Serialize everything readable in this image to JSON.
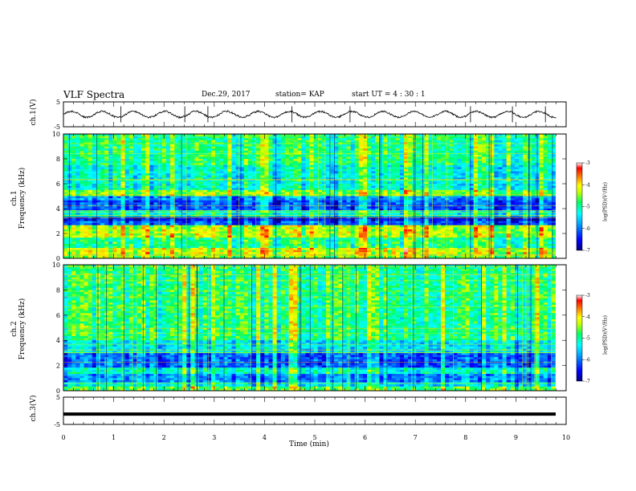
{
  "header": {
    "title": "VLF Spectra",
    "date": "Dec.29, 2017",
    "station": "station= KAP",
    "start": "start  UT =   4 : 30 : 1"
  },
  "chart_data": [
    {
      "type": "line",
      "name": "ch1-waveform",
      "ylabel": "ch.1(V)",
      "ylim": [
        -5,
        5
      ],
      "yticks": [
        "5",
        "-5"
      ],
      "xlim": [
        0,
        10
      ],
      "description_values": {
        "amplitude_V": 1.2,
        "oscillation_period_min": 0.62,
        "noise_V": 0.35
      }
    },
    {
      "type": "heatmap",
      "name": "ch1-spectrogram",
      "ylabel": "ch.1\nFrequency  (kHz)",
      "ylim": [
        0,
        10
      ],
      "yticks": [
        "0",
        "2",
        "4",
        "6",
        "8",
        "10"
      ],
      "xlim": [
        0,
        10
      ],
      "colorbar": {
        "label": "log(PSD)(V²/Hz)",
        "range": [
          -7,
          -3
        ],
        "ticks": [
          "-3",
          "-4",
          "-5",
          "-6",
          "-7"
        ]
      },
      "bands_kHz_log_psd": [
        [
          0.0,
          0.3,
          -4.6
        ],
        [
          0.3,
          0.8,
          -4.3
        ],
        [
          0.8,
          1.7,
          -5.0
        ],
        [
          1.7,
          2.6,
          -4.4
        ],
        [
          2.6,
          3.0,
          -6.2
        ],
        [
          3.0,
          3.4,
          -6.6
        ],
        [
          3.4,
          3.9,
          -5.3
        ],
        [
          3.9,
          4.6,
          -6.2
        ],
        [
          4.6,
          5.0,
          -5.9
        ],
        [
          5.0,
          5.5,
          -4.6
        ],
        [
          5.5,
          7.5,
          -5.3
        ],
        [
          7.5,
          10.0,
          -5.0
        ]
      ]
    },
    {
      "type": "heatmap",
      "name": "ch2-spectrogram",
      "ylabel": "ch.2\nFrequency  (kHz)",
      "ylim": [
        0,
        10
      ],
      "yticks": [
        "0",
        "2",
        "4",
        "6",
        "8",
        "10"
      ],
      "xlim": [
        0,
        10
      ],
      "colorbar": {
        "label": "log(PSD)(V²/Hz)",
        "range": [
          -7,
          -3
        ],
        "ticks": [
          "-3",
          "-4",
          "-5",
          "-6",
          "-7"
        ]
      },
      "bands_kHz_log_psd": [
        [
          0.0,
          0.3,
          -4.7
        ],
        [
          0.3,
          0.7,
          -5.4
        ],
        [
          0.7,
          1.3,
          -5.9
        ],
        [
          1.3,
          1.9,
          -5.2
        ],
        [
          1.9,
          3.0,
          -6.1
        ],
        [
          3.0,
          4.0,
          -5.4
        ],
        [
          4.0,
          10.0,
          -4.9
        ]
      ]
    },
    {
      "type": "line",
      "name": "ch3-waveform",
      "ylabel": "ch.3(V)",
      "ylim": [
        -5,
        5
      ],
      "yticks": [
        "5",
        "-5"
      ],
      "xlim": [
        0,
        10
      ],
      "xlabel": "Time  (min)",
      "xticks": [
        "0",
        "1",
        "2",
        "3",
        "4",
        "5",
        "6",
        "7",
        "8",
        "9",
        "10"
      ],
      "constant_value_V": -1.2
    }
  ],
  "colors": {
    "colormap": [
      "#000080",
      "#0000ff",
      "#00a0ff",
      "#00ffff",
      "#00ff60",
      "#c0ff00",
      "#ffff00",
      "#ff8000",
      "#ff0000",
      "#ffffff"
    ]
  }
}
